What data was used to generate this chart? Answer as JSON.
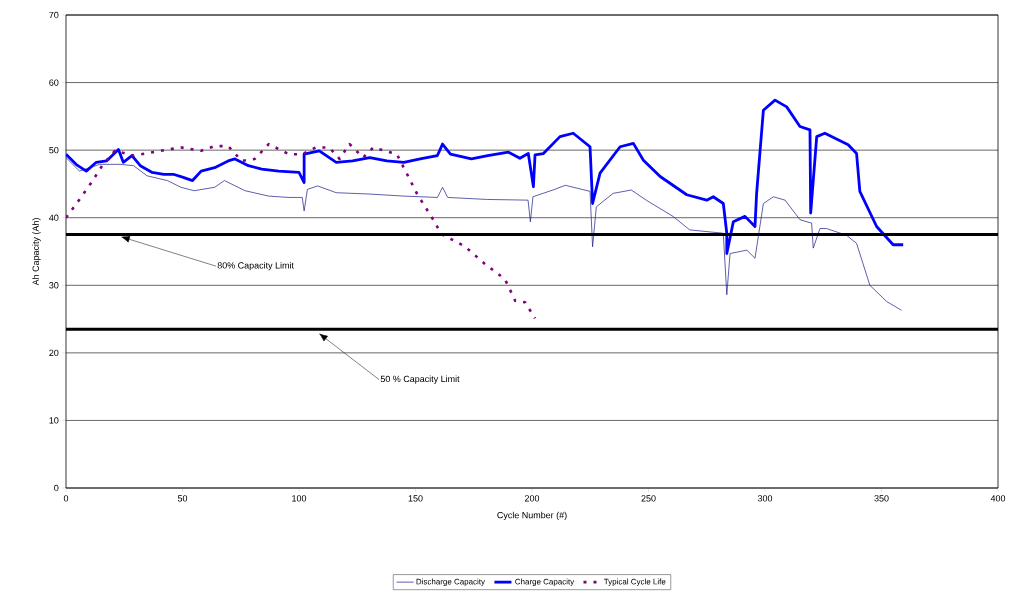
{
  "chart_data": {
    "type": "line",
    "xlabel": "Cycle Number (#)",
    "ylabel": "Ah Capacity (Ah)",
    "xlim": [
      0,
      400
    ],
    "xticks": [
      0,
      50,
      100,
      150,
      200,
      250,
      300,
      350,
      400
    ],
    "ylim": [
      0,
      70
    ],
    "yticks": [
      0,
      10,
      20,
      30,
      40,
      50,
      60,
      70
    ],
    "grid": "y",
    "legend": "bottom",
    "ref_lines": [
      {
        "axis": "y",
        "value": 37.5,
        "color": "#000000"
      },
      {
        "axis": "y",
        "value": 23.5,
        "color": "#000000"
      }
    ],
    "annotations": [
      {
        "text": "80% Capacity Limit",
        "x": 23.5,
        "y": 37.2
      },
      {
        "text": "50 % Capacity Limit",
        "x": 108.5,
        "y": 22.9
      }
    ],
    "series": [
      {
        "name": "Discharge Capacity",
        "color": "#1a1a8c",
        "x": [
          0,
          5.8,
          14.5,
          23.2,
          29,
          34.8,
          43.5,
          49.3,
          55,
          63.8,
          68,
          76.8,
          87,
          95.7,
          101.4,
          102.2,
          103.6,
          108,
          116,
          130.4,
          145,
          159.4,
          161.6,
          163.8,
          181,
          198.3,
          199.3,
          200.4,
          209,
          214.3,
          224.9,
          226,
          227.6,
          234.8,
          242.6,
          249,
          260.5,
          267.7,
          282.1,
          283.6,
          285,
          292.2,
          295.7,
          299.3,
          303.6,
          308.6,
          315,
          320,
          320.7,
          323.6,
          326.4,
          335,
          339.3,
          345,
          352.2,
          358.6
        ],
        "values": [
          48.9,
          46.9,
          47.9,
          47.9,
          47.7,
          46.2,
          45.5,
          44.5,
          44.0,
          44.5,
          45.5,
          44.0,
          43.2,
          43.0,
          43.0,
          41.0,
          44.2,
          44.7,
          43.7,
          43.5,
          43.2,
          43.0,
          44.5,
          43.0,
          42.7,
          42.6,
          39.4,
          43.1,
          44.1,
          44.8,
          43.9,
          35.7,
          41.6,
          43.6,
          44.1,
          42.6,
          40.2,
          38.2,
          37.7,
          28.6,
          34.7,
          35.2,
          34.0,
          42.1,
          43.1,
          42.6,
          39.7,
          39.2,
          35.5,
          38.4,
          38.4,
          37.4,
          36.2,
          30.0,
          27.6,
          26.3
        ]
      },
      {
        "name": "Charge Capacity",
        "color": "#0000ff",
        "x": [
          0,
          4.3,
          8.7,
          13,
          17.4,
          22.5,
          24.6,
          28.3,
          31.9,
          37,
          42,
          46.4,
          50,
          54.3,
          58,
          63.8,
          69.6,
          72.5,
          78.3,
          84,
          91.3,
          100,
          102.2,
          102.2,
          108.7,
          116,
          123,
          130.4,
          137.7,
          145,
          152,
          159.4,
          161.6,
          165,
          174,
          181,
          189.9,
          194.8,
          198.4,
          200.6,
          201.3,
          204.9,
          212,
          217.7,
          224.9,
          226,
          229.2,
          237.8,
          243.5,
          247.8,
          255,
          266.4,
          275,
          277.8,
          282.1,
          283.6,
          283.6,
          286.4,
          291.4,
          295.7,
          296.4,
          299.3,
          304.3,
          309.3,
          315,
          319.3,
          319.6,
          322.2,
          325.7,
          335.7,
          339.3,
          340.7,
          347.9,
          355,
          359.3
        ],
        "values": [
          49.4,
          47.9,
          46.9,
          48.2,
          48.4,
          50.1,
          48.2,
          49.2,
          47.7,
          46.7,
          46.4,
          46.4,
          46.0,
          45.5,
          46.9,
          47.4,
          48.4,
          48.7,
          47.7,
          47.2,
          46.9,
          46.7,
          45.2,
          49.4,
          49.9,
          48.2,
          48.4,
          48.9,
          48.4,
          48.2,
          48.7,
          49.2,
          50.9,
          49.4,
          48.7,
          49.2,
          49.7,
          48.8,
          49.5,
          44.6,
          49.3,
          49.5,
          52.0,
          52.5,
          50.5,
          42.1,
          46.6,
          50.5,
          51.0,
          48.5,
          46.1,
          43.4,
          42.6,
          43.1,
          42.1,
          37.7,
          34.7,
          39.4,
          40.2,
          38.7,
          43.6,
          55.9,
          57.4,
          56.4,
          53.5,
          53.0,
          40.7,
          52.0,
          52.5,
          50.8,
          49.5,
          43.9,
          38.7,
          36.0,
          36.0
        ]
      },
      {
        "name": "Typical Cycle Life",
        "color": "#800080",
        "line_style": "dashed",
        "x": [
          0,
          5.8,
          10.9,
          15.9,
          21,
          29,
          40.6,
          49.3,
          58,
          63.8,
          69.6,
          75.4,
          81,
          87,
          95.7,
          101.4,
          107.2,
          113,
          117.4,
          121.7,
          127.5,
          131.9,
          142,
          147.8,
          150.7,
          158,
          161,
          171,
          179.7,
          188.4,
          192.8,
          197,
          201.3
        ],
        "values": [
          40.0,
          42.7,
          45.2,
          47.9,
          49.9,
          49.2,
          49.9,
          50.4,
          49.9,
          50.6,
          50.6,
          48.4,
          48.7,
          50.9,
          49.4,
          49.4,
          50.4,
          50.4,
          48.7,
          50.9,
          48.9,
          50.4,
          49.4,
          45.5,
          43.5,
          39.5,
          37.6,
          35.8,
          33.2,
          30.9,
          27.7,
          27.5,
          25.1
        ]
      }
    ]
  }
}
